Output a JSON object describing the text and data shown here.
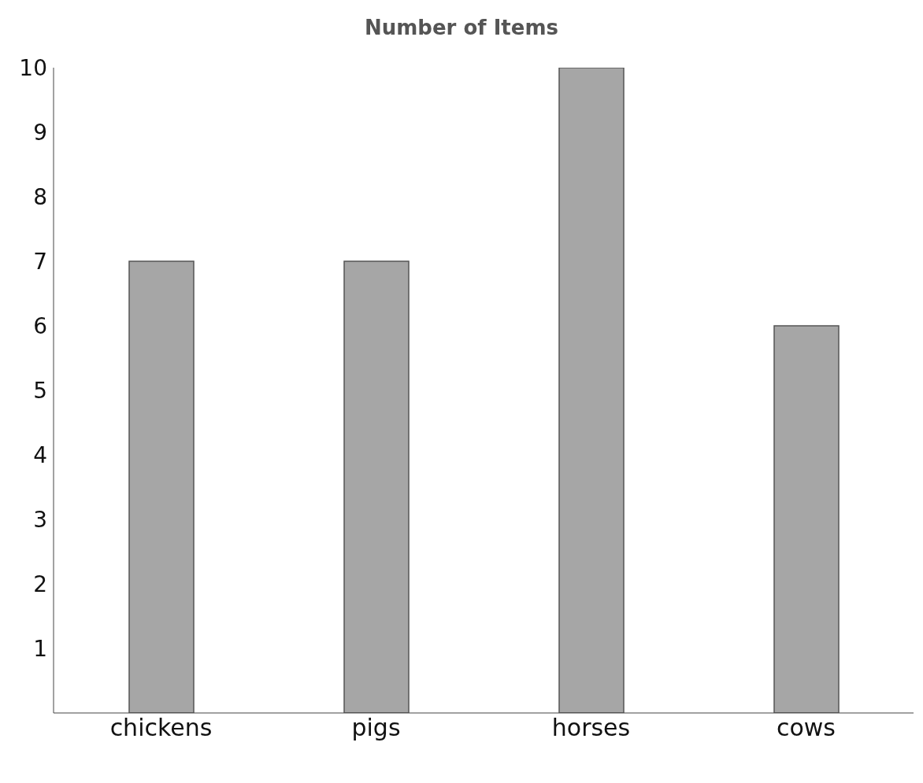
{
  "chart_data": {
    "type": "bar",
    "title": "Number of Items",
    "categories": [
      "chickens",
      "pigs",
      "horses",
      "cows"
    ],
    "values": [
      7,
      7,
      10,
      6
    ],
    "color": "#a6a6a6",
    "ylim": [
      0,
      10
    ],
    "yticks": [
      1,
      2,
      3,
      4,
      5,
      6,
      7,
      8,
      9,
      10
    ],
    "grid": false,
    "legend": false
  }
}
